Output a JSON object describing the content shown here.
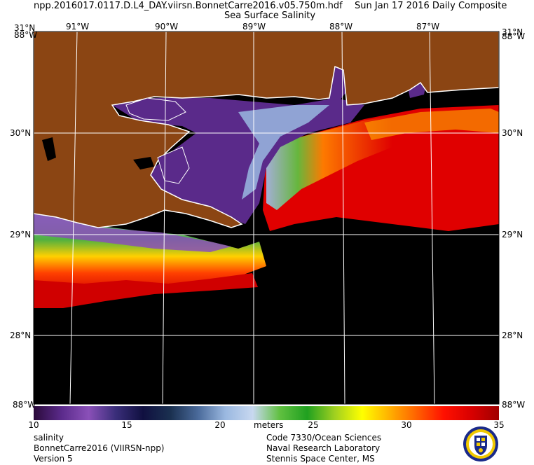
{
  "header": {
    "filename": "npp.2016017.0117.D.L4_DAY.viirsn.BonnetCarre2016.v05.750m.hdf",
    "date": "Sun Jan 17 2016 Daily Composite",
    "product": "Sea Surface Salinity"
  },
  "map": {
    "lon_labels": [
      "91°W",
      "90°W",
      "89°W",
      "88°W",
      "87°W"
    ],
    "lat_labels": [
      "30°N",
      "29°N",
      "28°N"
    ],
    "corner_top_left": "31°N",
    "corner_top_left_lower": "88°W",
    "corner_top_right": "31°N",
    "corner_top_right_lower": "88°W",
    "corner_bottom_left": "88°W",
    "corner_bottom_right": "88°W",
    "colors": {
      "land": "#8b4513",
      "no_data": "#000000",
      "coast": "#ffffff",
      "grid": "#ffffff"
    }
  },
  "colorbar": {
    "ticks": [
      "10",
      "15",
      "20",
      "25",
      "30",
      "35"
    ],
    "units": "meters",
    "colors": [
      "#2a0a3a",
      "#5a2a8a",
      "#8a50b8",
      "#3a2e7a",
      "#101040",
      "#1a3050",
      "#4a6a9a",
      "#9ab8e0",
      "#c8d8f0",
      "#60c040",
      "#20a020",
      "#a0d020",
      "#ffff00",
      "#ffb000",
      "#ff6000",
      "#ff1000",
      "#d80000",
      "#a00000"
    ]
  },
  "footer": {
    "left_lines": [
      "salinity",
      "BonnetCarre2016 (VIIRSN-npp)",
      "Version 5"
    ],
    "right_lines": [
      "Code 7330/Ocean Sciences",
      "Naval Research Laboratory",
      "Stennis Space Center, MS"
    ],
    "logo": "nrl-seal-icon"
  }
}
